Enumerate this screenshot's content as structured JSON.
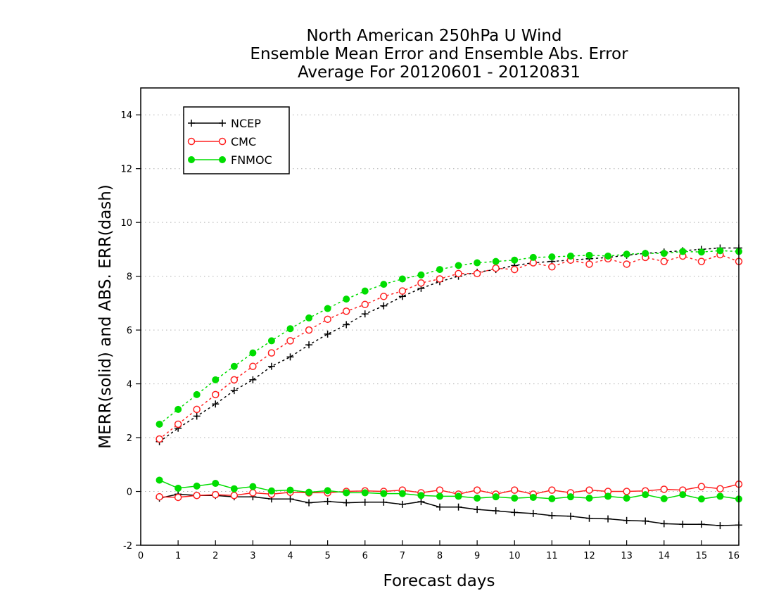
{
  "chart_data": {
    "type": "line",
    "title": [
      "North American 250hPa U Wind",
      "Ensemble Mean Error and Ensemble Abs. Error",
      "Average For 20120601 - 20120831"
    ],
    "xlabel": "Forecast days",
    "ylabel": "MERR(solid) and ABS. ERR(dash)",
    "xlim": [
      0,
      16
    ],
    "ylim": [
      -2,
      15
    ],
    "xticks": [
      0,
      1,
      2,
      3,
      4,
      5,
      6,
      7,
      8,
      9,
      10,
      11,
      12,
      13,
      14,
      15,
      16
    ],
    "xtick_labels": [
      "0",
      "1",
      "2",
      "3",
      "4",
      "5",
      "6",
      "7",
      "8",
      "9",
      "10",
      "11",
      "12",
      "13",
      "14",
      "15",
      "16"
    ],
    "yticks": [
      -2,
      0,
      2,
      4,
      6,
      8,
      10,
      12,
      14
    ],
    "ytick_labels": [
      "-2",
      "0",
      "2",
      "4",
      "6",
      "8",
      "10",
      "12",
      "14"
    ],
    "grid": "horizontal dotted",
    "legend_position": "top-left",
    "x": [
      0.5,
      1,
      1.5,
      2,
      2.5,
      3,
      3.5,
      4,
      4.5,
      5,
      5.5,
      6,
      6.5,
      7,
      7.5,
      8,
      8.5,
      9,
      9.5,
      10,
      10.5,
      11,
      11.5,
      12,
      12.5,
      13,
      13.5,
      14,
      14.5,
      15,
      15.5,
      16
    ],
    "series": [
      {
        "name": "NCEP",
        "color": "#000000",
        "marker": "plus",
        "mean_error": [
          -0.25,
          -0.1,
          -0.15,
          -0.15,
          -0.2,
          -0.2,
          -0.28,
          -0.28,
          -0.42,
          -0.37,
          -0.42,
          -0.4,
          -0.4,
          -0.48,
          -0.38,
          -0.58,
          -0.58,
          -0.67,
          -0.72,
          -0.78,
          -0.82,
          -0.9,
          -0.92,
          -1.0,
          -1.02,
          -1.08,
          -1.1,
          -1.2,
          -1.22,
          -1.22,
          -1.27,
          -1.25
        ],
        "abs_error": [
          1.85,
          2.35,
          2.8,
          3.25,
          3.75,
          4.15,
          4.65,
          5.0,
          5.45,
          5.85,
          6.2,
          6.6,
          6.9,
          7.25,
          7.55,
          7.8,
          8.0,
          8.15,
          8.25,
          8.4,
          8.5,
          8.55,
          8.6,
          8.65,
          8.7,
          8.78,
          8.85,
          8.9,
          8.95,
          9.0,
          9.05,
          9.05
        ]
      },
      {
        "name": "CMC",
        "color": "#ff2020",
        "marker": "open-circle",
        "mean_error": [
          -0.2,
          -0.22,
          -0.15,
          -0.12,
          -0.15,
          -0.05,
          -0.1,
          -0.03,
          -0.05,
          -0.05,
          0.0,
          0.02,
          0.0,
          0.05,
          -0.05,
          0.05,
          -0.1,
          0.05,
          -0.1,
          0.05,
          -0.1,
          0.05,
          -0.05,
          0.05,
          0.0,
          0.0,
          0.02,
          0.08,
          0.05,
          0.18,
          0.1,
          0.27
        ],
        "abs_error": [
          1.95,
          2.5,
          3.05,
          3.6,
          4.15,
          4.65,
          5.15,
          5.6,
          6.0,
          6.4,
          6.7,
          6.95,
          7.25,
          7.45,
          7.75,
          7.9,
          8.1,
          8.1,
          8.3,
          8.25,
          8.5,
          8.35,
          8.6,
          8.45,
          8.65,
          8.45,
          8.7,
          8.55,
          8.75,
          8.55,
          8.8,
          8.55
        ]
      },
      {
        "name": "FNMOC",
        "color": "#00dd00",
        "marker": "filled-circle",
        "mean_error": [
          0.42,
          0.12,
          0.2,
          0.3,
          0.1,
          0.18,
          0.02,
          0.05,
          -0.03,
          0.03,
          -0.05,
          -0.05,
          -0.08,
          -0.08,
          -0.15,
          -0.18,
          -0.18,
          -0.25,
          -0.2,
          -0.25,
          -0.22,
          -0.27,
          -0.2,
          -0.25,
          -0.18,
          -0.25,
          -0.12,
          -0.27,
          -0.12,
          -0.28,
          -0.18,
          -0.28
        ],
        "abs_error": [
          2.5,
          3.05,
          3.6,
          4.15,
          4.65,
          5.15,
          5.6,
          6.05,
          6.45,
          6.8,
          7.15,
          7.45,
          7.7,
          7.9,
          8.05,
          8.25,
          8.4,
          8.5,
          8.55,
          8.6,
          8.7,
          8.72,
          8.75,
          8.78,
          8.75,
          8.82,
          8.85,
          8.85,
          8.92,
          8.9,
          8.95,
          8.92
        ]
      }
    ]
  }
}
